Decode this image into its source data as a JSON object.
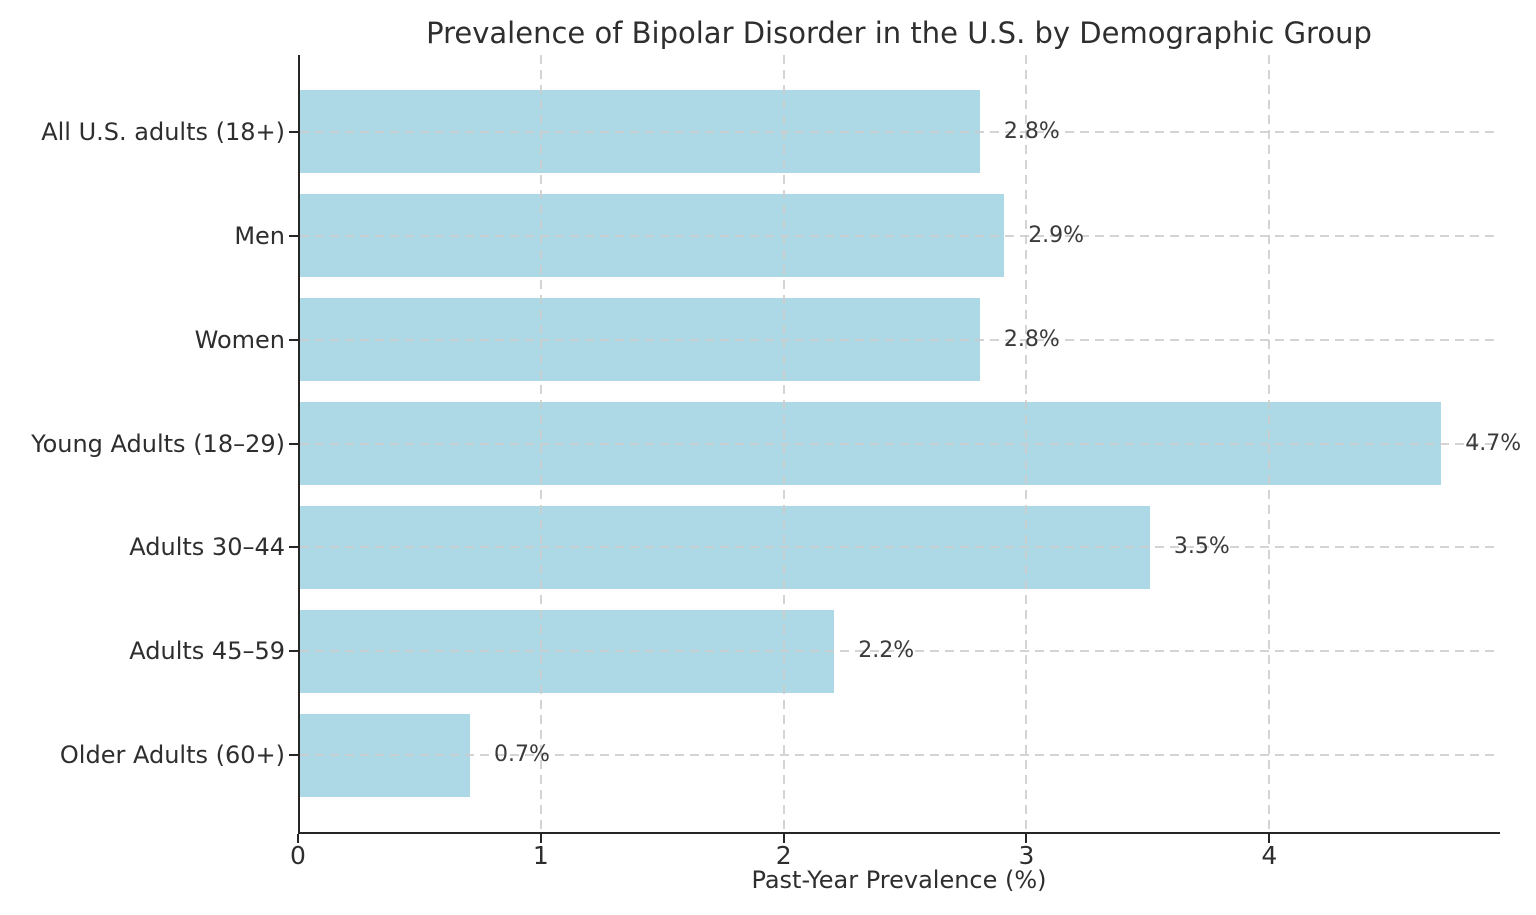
{
  "chart_data": {
    "type": "bar",
    "orientation": "horizontal",
    "title": "Prevalence of Bipolar Disorder in the U.S. by Demographic Group",
    "xlabel": "Past-Year Prevalence (%)",
    "ylabel": "",
    "categories": [
      "All U.S. adults (18+)",
      "Men",
      "Women",
      "Young Adults (18–29)",
      "Adults 30–44",
      "Adults 45–59",
      "Older Adults (60+)"
    ],
    "values": [
      2.8,
      2.9,
      2.8,
      4.7,
      3.5,
      2.2,
      0.7
    ],
    "value_labels": [
      "2.8%",
      "2.9%",
      "2.8%",
      "4.7%",
      "3.5%",
      "2.2%",
      "0.7%"
    ],
    "x_ticks": [
      0,
      1,
      2,
      3,
      4
    ],
    "x_tick_labels": [
      "0",
      "1",
      "2",
      "3",
      "4"
    ],
    "xlim": [
      0,
      4.95
    ],
    "grid": "dashed, both axes, drawn over bars",
    "legend": "none",
    "bar_color": "#ADD8E6",
    "grid_color": "#cccccc",
    "axis_color": "#262626",
    "text_color": "#2e2e2e",
    "background_color": "#ffffff"
  }
}
